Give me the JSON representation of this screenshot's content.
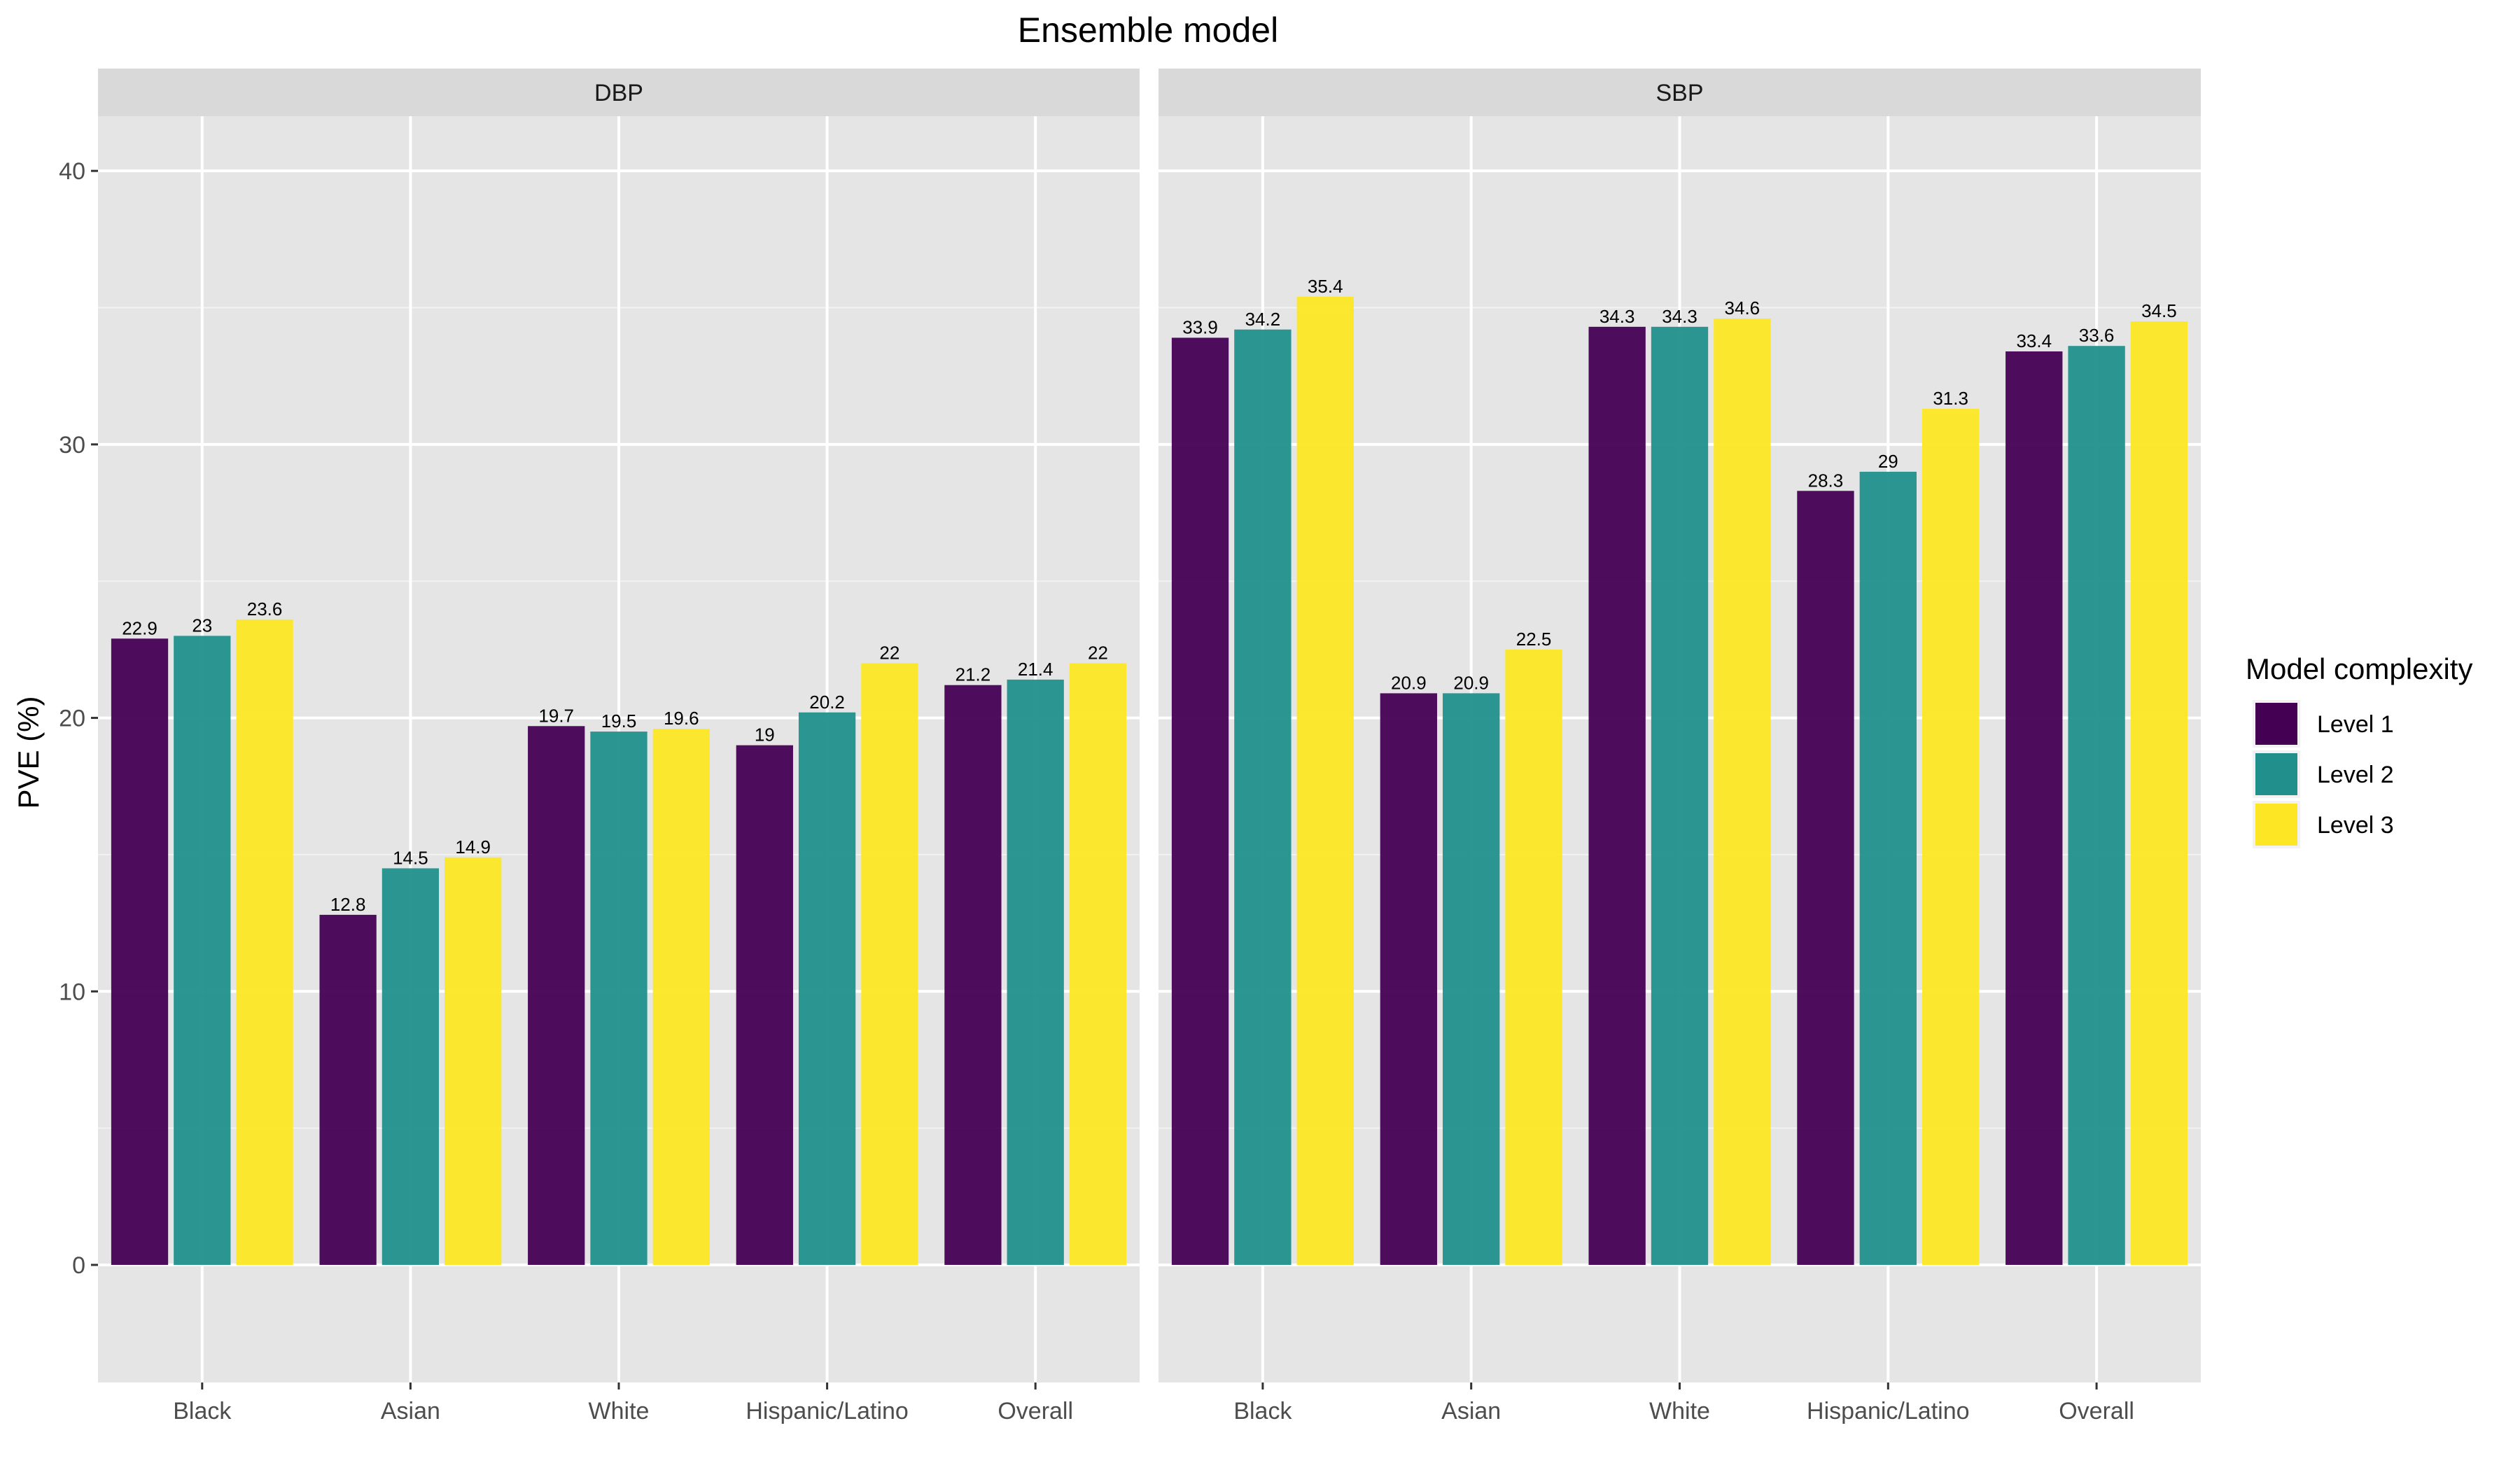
{
  "chart_data": {
    "type": "bar",
    "title": "Ensemble model",
    "ylabel": "PVE (%)",
    "xlabel": "",
    "ylim": [
      -4.3,
      42
    ],
    "yticks": [
      0,
      10,
      20,
      30,
      40
    ],
    "categories": [
      "Black",
      "Asian",
      "White",
      "Hispanic/Latino",
      "Overall"
    ],
    "grid": true,
    "legend": {
      "title": "Model complexity",
      "position": "right",
      "entries": [
        "Level 1",
        "Level 2",
        "Level 3"
      ]
    },
    "colors": [
      "#440154",
      "#21908C",
      "#FDE725"
    ],
    "panel_background": "#E5E5E5",
    "strip_background": "#D9D9D9",
    "facets": [
      {
        "name": "DBP",
        "series": [
          {
            "name": "Level 1",
            "values": [
              22.9,
              12.8,
              19.7,
              19,
              21.2
            ],
            "labels": [
              "22.9",
              "12.8",
              "19.7",
              "19",
              "21.2"
            ]
          },
          {
            "name": "Level 2",
            "values": [
              23,
              14.5,
              19.5,
              20.2,
              21.4
            ],
            "labels": [
              "23",
              "14.5",
              "19.5",
              "20.2",
              "21.4"
            ]
          },
          {
            "name": "Level 3",
            "values": [
              23.6,
              14.9,
              19.6,
              22,
              22
            ],
            "labels": [
              "23.6",
              "14.9",
              "19.6",
              "22",
              "22"
            ]
          }
        ]
      },
      {
        "name": "SBP",
        "series": [
          {
            "name": "Level 1",
            "values": [
              33.9,
              20.9,
              34.3,
              28.3,
              33.4
            ],
            "labels": [
              "33.9",
              "20.9",
              "34.3",
              "28.3",
              "33.4"
            ]
          },
          {
            "name": "Level 2",
            "values": [
              34.2,
              20.9,
              34.3,
              29,
              33.6
            ],
            "labels": [
              "34.2",
              "20.9",
              "34.3",
              "29",
              "33.6"
            ]
          },
          {
            "name": "Level 3",
            "values": [
              35.4,
              22.5,
              34.6,
              31.3,
              34.5
            ],
            "labels": [
              "35.4",
              "22.5",
              "34.6",
              "31.3",
              "34.5"
            ]
          }
        ]
      }
    ]
  }
}
